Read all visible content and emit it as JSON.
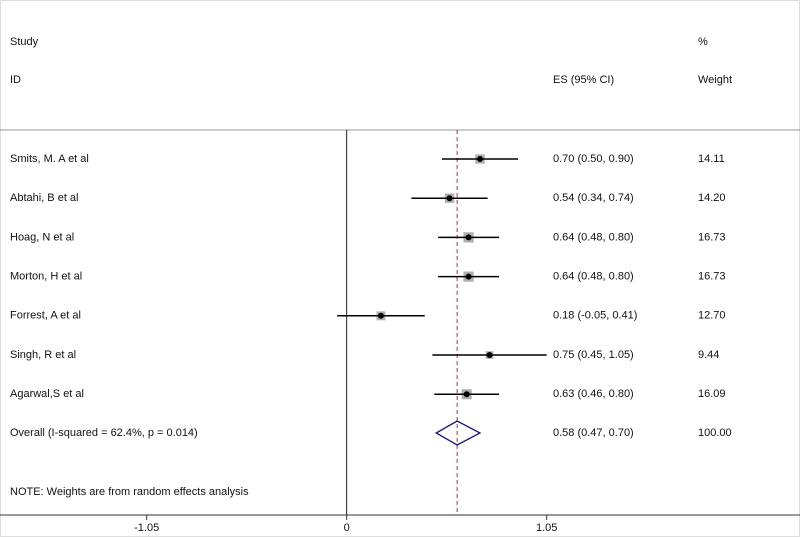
{
  "chart_data": {
    "type": "forest",
    "headers": {
      "study": "Study",
      "id": "ID",
      "es": "ES (95% CI)",
      "pct": "%",
      "weight": "Weight"
    },
    "studies": [
      "Smits, M. A et al",
      "Abtahi, B et al",
      "Hoag, N et al",
      "Morton, H et al",
      "Forrest, A et al",
      "Singh, R et al",
      "Agarwal,S et al"
    ],
    "es": [
      0.7,
      0.54,
      0.64,
      0.64,
      0.18,
      0.75,
      0.63
    ],
    "lower": [
      0.5,
      0.34,
      0.48,
      0.48,
      -0.05,
      0.45,
      0.46
    ],
    "upper": [
      0.9,
      0.74,
      0.8,
      0.8,
      0.41,
      1.05,
      0.8
    ],
    "es_labels": [
      "0.70 (0.50, 0.90)",
      "0.54 (0.34, 0.74)",
      "0.64 (0.48, 0.80)",
      "0.64 (0.48, 0.80)",
      "0.18 (-0.05, 0.41)",
      "0.75 (0.45, 1.05)",
      "0.63 (0.46, 0.80)"
    ],
    "weights": [
      14.11,
      14.2,
      16.73,
      16.73,
      12.7,
      9.44,
      16.09
    ],
    "weight_labels": [
      "14.11",
      "14.20",
      "16.73",
      "16.73",
      "12.70",
      "9.44",
      "16.09"
    ],
    "overall": {
      "label": "Overall  (I-squared = 62.4%, p = 0.014)",
      "es": 0.58,
      "lower": 0.47,
      "upper": 0.7,
      "es_label": "0.58 (0.47, 0.70)",
      "weight": 100,
      "weight_label": "100.00"
    },
    "note": "NOTE: Weights are from random effects analysis",
    "xlim": [
      -1.82,
      2.38
    ],
    "xticks": [
      -1.05,
      0,
      1.05
    ],
    "box_color": "#b0b0b0",
    "diamond_color": "#1a1a7a",
    "reference_color": "#b03040"
  }
}
